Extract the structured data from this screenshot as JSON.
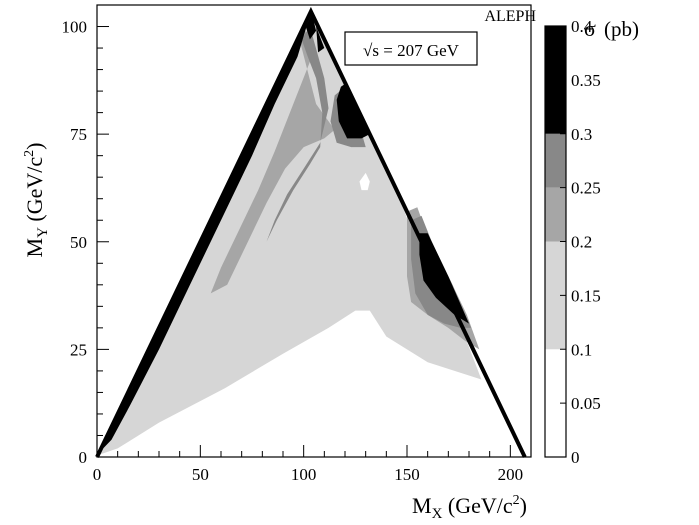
{
  "chart_data": {
    "type": "heatmap",
    "experiment_label": "ALEPH",
    "energy_label": "√s = 207 GeV",
    "xlabel": "M_X (GeV/c²)",
    "ylabel": "M_Y (GeV/c²)",
    "xlim": [
      0,
      210
    ],
    "ylim": [
      0,
      105
    ],
    "x_ticks": [
      "0",
      "50",
      "100",
      "150",
      "200"
    ],
    "y_ticks": [
      "0",
      "25",
      "50",
      "75",
      "100"
    ],
    "colorbar": {
      "title": "σ (pb)",
      "range": [
        0,
        0.4
      ],
      "tick_labels": [
        "0",
        "0.05",
        "0.1",
        "0.15",
        "0.2",
        "0.25",
        "0.3",
        "0.35",
        "0.4"
      ],
      "bands": [
        {
          "from": 0.0,
          "to": 0.1,
          "color": "#ffffff"
        },
        {
          "from": 0.1,
          "to": 0.2,
          "color": "#d6d6d6"
        },
        {
          "from": 0.2,
          "to": 0.25,
          "color": "#a6a6a6"
        },
        {
          "from": 0.25,
          "to": 0.3,
          "color": "#888888"
        },
        {
          "from": 0.3,
          "to": 0.4,
          "color": "#000000"
        }
      ]
    },
    "kinematic_boundary": [
      [
        0,
        0
      ],
      [
        103.5,
        103.5
      ],
      [
        207,
        0
      ]
    ],
    "regions": [
      {
        "level": "0.1-0.2",
        "color": "#d6d6d6",
        "polygon": [
          [
            1,
            0.5
          ],
          [
            103,
            102.5
          ],
          [
            125,
            82
          ],
          [
            145,
            62
          ],
          [
            158,
            45
          ],
          [
            170,
            35
          ],
          [
            178,
            28
          ],
          [
            186,
            18
          ],
          [
            160,
            22
          ],
          [
            140,
            28
          ],
          [
            132,
            34
          ],
          [
            125,
            34
          ],
          [
            112,
            30
          ],
          [
            90,
            24
          ],
          [
            62,
            16
          ],
          [
            30,
            8
          ],
          [
            10,
            2
          ]
        ]
      },
      {
        "level": "0.2-0.25",
        "color": "#a6a6a6",
        "polygon": [
          [
            98,
            97
          ],
          [
            101,
            99
          ],
          [
            104,
            93
          ],
          [
            95,
            82
          ],
          [
            86,
            71
          ],
          [
            78,
            62
          ],
          [
            68,
            52
          ],
          [
            60,
            44
          ],
          [
            55,
            38
          ],
          [
            63,
            40
          ],
          [
            72,
            49
          ],
          [
            82,
            59
          ],
          [
            91,
            67
          ],
          [
            100,
            72
          ],
          [
            110,
            74
          ],
          [
            115,
            76
          ],
          [
            106,
            82
          ]
        ]
      },
      {
        "level": "0.2-0.25",
        "color": "#a6a6a6",
        "polygon": [
          [
            150,
            57
          ],
          [
            155,
            58
          ],
          [
            161,
            50
          ],
          [
            170,
            42
          ],
          [
            179,
            33
          ],
          [
            185,
            25
          ],
          [
            178,
            27
          ],
          [
            170,
            30
          ],
          [
            160,
            33
          ],
          [
            152,
            36
          ],
          [
            150,
            42
          ]
        ]
      },
      {
        "level": "0.25-0.3",
        "color": "#888888",
        "polygon": [
          [
            99,
            97
          ],
          [
            103,
            100
          ],
          [
            110,
            88
          ],
          [
            112,
            81
          ],
          [
            108,
            73
          ],
          [
            100,
            67
          ],
          [
            92,
            61
          ],
          [
            86,
            55
          ],
          [
            82,
            50
          ],
          [
            87,
            55
          ],
          [
            95,
            62
          ],
          [
            103,
            68
          ],
          [
            108,
            72
          ],
          [
            109,
            80
          ],
          [
            106,
            88
          ],
          [
            102,
            93
          ]
        ]
      },
      {
        "level": "0.25-0.3",
        "color": "#888888",
        "polygon": [
          [
            115,
            84
          ],
          [
            120,
            86
          ],
          [
            124,
            82
          ],
          [
            130,
            72
          ],
          [
            123,
            72
          ],
          [
            116,
            73
          ],
          [
            113,
            78
          ]
        ]
      },
      {
        "level": "0.25-0.3",
        "color": "#888888",
        "polygon": [
          [
            152,
            55
          ],
          [
            157,
            56
          ],
          [
            162,
            50
          ],
          [
            172,
            40
          ],
          [
            181,
            30
          ],
          [
            176,
            30
          ],
          [
            168,
            31
          ],
          [
            160,
            33
          ],
          [
            154,
            38
          ],
          [
            152,
            46
          ]
        ]
      },
      {
        "level": "0.3-0.4",
        "color": "#000000",
        "polygon": [
          [
            101,
            100
          ],
          [
            104,
            103
          ],
          [
            106,
            99
          ],
          [
            103,
            97
          ]
        ]
      },
      {
        "level": "0.3-0.4",
        "color": "#000000",
        "polygon": [
          [
            3,
            2
          ],
          [
            10,
            10
          ],
          [
            17,
            16
          ],
          [
            35,
            35
          ],
          [
            52,
            52
          ],
          [
            70,
            70
          ],
          [
            88,
            88
          ],
          [
            102,
            101
          ],
          [
            97,
            93
          ],
          [
            86,
            82
          ],
          [
            75,
            70
          ],
          [
            60,
            55
          ],
          [
            45,
            40
          ],
          [
            30,
            25
          ],
          [
            16,
            12
          ],
          [
            7,
            4
          ]
        ]
      },
      {
        "level": "0.3-0.4",
        "color": "#000000",
        "polygon": [
          [
            106,
            100
          ],
          [
            110,
            95
          ],
          [
            107,
            94
          ]
        ]
      },
      {
        "level": "0.3-0.4",
        "color": "#000000",
        "polygon": [
          [
            118,
            86
          ],
          [
            121,
            87
          ],
          [
            124,
            83
          ],
          [
            132,
            75
          ],
          [
            128,
            74
          ],
          [
            121,
            74
          ],
          [
            117,
            78
          ],
          [
            116,
            83
          ]
        ]
      },
      {
        "level": "0.3-0.4",
        "color": "#000000",
        "polygon": [
          [
            156,
            52
          ],
          [
            160,
            52
          ],
          [
            162,
            50
          ],
          [
            170,
            42
          ],
          [
            180,
            31
          ],
          [
            173,
            33
          ],
          [
            164,
            37
          ],
          [
            158,
            41
          ],
          [
            156,
            47
          ]
        ]
      },
      {
        "level": "0-0.1",
        "color": "#ffffff",
        "polygon": [
          [
            127,
            64
          ],
          [
            130,
            66
          ],
          [
            132,
            64
          ],
          [
            131,
            62
          ],
          [
            128,
            62
          ]
        ]
      }
    ]
  }
}
